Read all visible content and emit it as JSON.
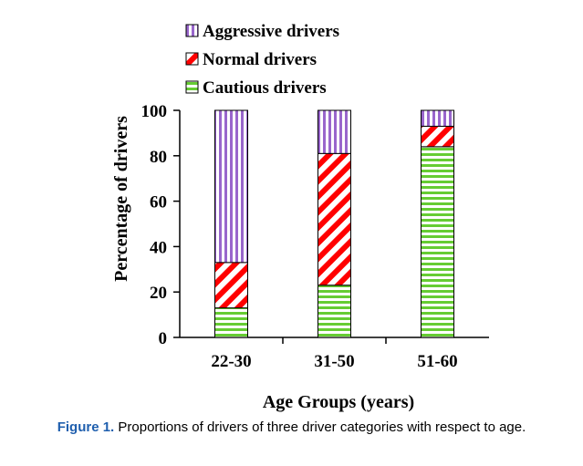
{
  "chart_data": {
    "type": "bar",
    "stacked": true,
    "categories": [
      "22-30",
      "31-50",
      "51-60"
    ],
    "series": [
      {
        "name": "Cautious drivers",
        "values": [
          13,
          23,
          84
        ],
        "color": "#66cc33",
        "pattern": "horizontal-stripes"
      },
      {
        "name": "Normal drivers",
        "values": [
          20,
          58,
          9
        ],
        "color": "#ff0000",
        "pattern": "diagonal-stripes"
      },
      {
        "name": "Aggressive drivers",
        "values": [
          67,
          19,
          7
        ],
        "color": "#9966cc",
        "pattern": "vertical-stripes"
      }
    ],
    "legend_order": [
      "Aggressive drivers",
      "Normal drivers",
      "Cautious drivers"
    ],
    "legend_position": "top",
    "xlabel": "Age Groups (years)",
    "ylabel": "Percentage of drivers",
    "ylim": [
      0,
      100
    ],
    "yticks": [
      "0",
      "20",
      "40",
      "60",
      "80",
      "100"
    ],
    "grid": false
  },
  "caption": {
    "label": "Figure 1.",
    "text": "Proportions of drivers of three driver categories with respect to age."
  }
}
